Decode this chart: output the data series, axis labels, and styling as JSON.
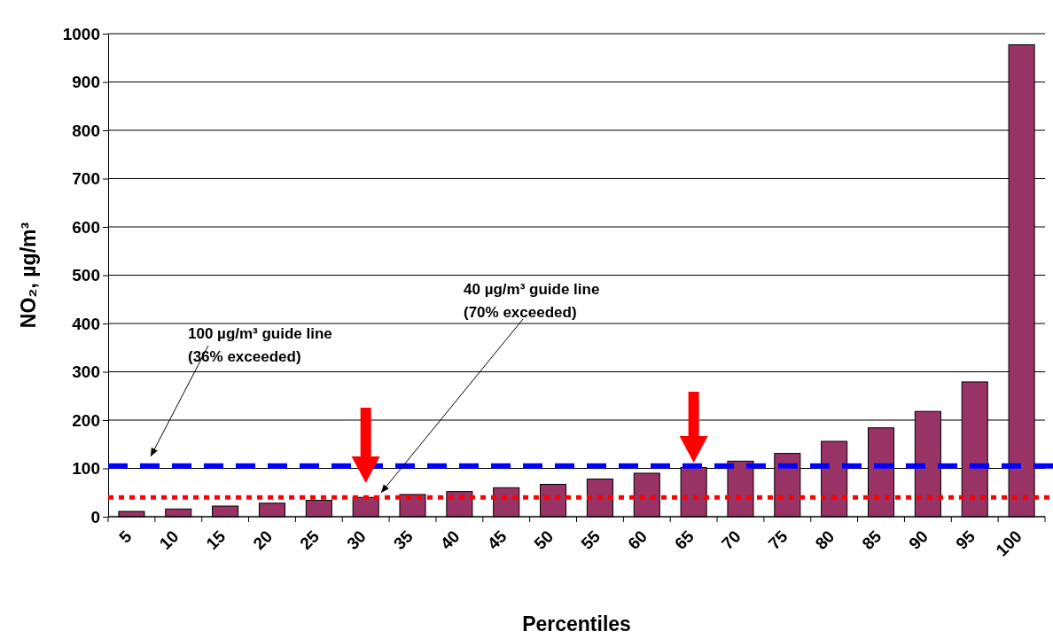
{
  "chart_data": {
    "type": "bar",
    "xlabel": "Percentiles",
    "ylabel": "NO₂, µg/m³",
    "categories": [
      "5",
      "10",
      "15",
      "20",
      "25",
      "30",
      "35",
      "40",
      "45",
      "50",
      "55",
      "60",
      "65",
      "70",
      "75",
      "80",
      "85",
      "90",
      "95",
      "100"
    ],
    "values": [
      11,
      16,
      22,
      28,
      34,
      40,
      46,
      52,
      60,
      67,
      78,
      90,
      102,
      115,
      131,
      156,
      184,
      218,
      279,
      977
    ],
    "color": "#993366",
    "ylim": [
      0,
      1000
    ],
    "yticks": [
      0,
      100,
      200,
      300,
      400,
      500,
      600,
      700,
      800,
      900,
      1000
    ],
    "grid": "y",
    "ref_lines": [
      {
        "axis": "y",
        "value": 105,
        "color": "#0000ff",
        "line_style": "dashed"
      },
      {
        "axis": "y",
        "value": 40,
        "color": "#ff0000",
        "line_style": "dotted"
      }
    ],
    "annotations": [
      "100 µg/m³ guide line\n(36% exceeded)",
      "40 µg/m³ guide line\n(70% exceeded)"
    ]
  }
}
